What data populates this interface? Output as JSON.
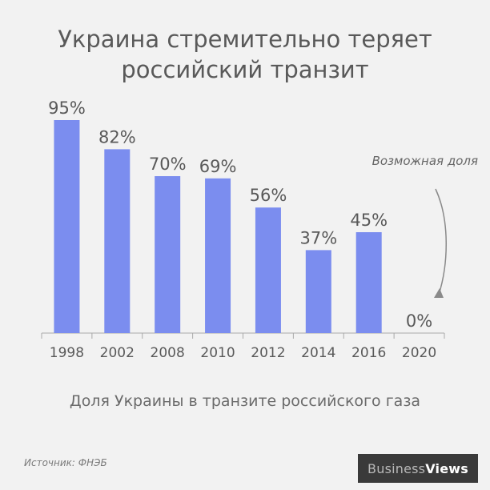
{
  "title_line1": "Украина стремительно теряет",
  "title_line2": "российский транзит",
  "subtitle": "Доля Украины в транзите российского газа",
  "source": "Источник: ФНЭБ",
  "brand": {
    "part1": "Business",
    "part2": "Views"
  },
  "annotation": "Возможная доля",
  "colors": {
    "bar": "#7b8def",
    "axis": "#a9a9a9",
    "background": "#f2f2f2"
  },
  "chart_data": {
    "type": "bar",
    "categories": [
      "1998",
      "2002",
      "2008",
      "2010",
      "2012",
      "2014",
      "2016",
      "2020"
    ],
    "values": [
      95,
      82,
      70,
      69,
      56,
      37,
      45,
      0
    ],
    "data_labels": [
      "95%",
      "82%",
      "70%",
      "69%",
      "56%",
      "37%",
      "45%",
      "0%"
    ],
    "ylim": [
      0,
      95
    ],
    "grid": false,
    "legend": "none"
  }
}
